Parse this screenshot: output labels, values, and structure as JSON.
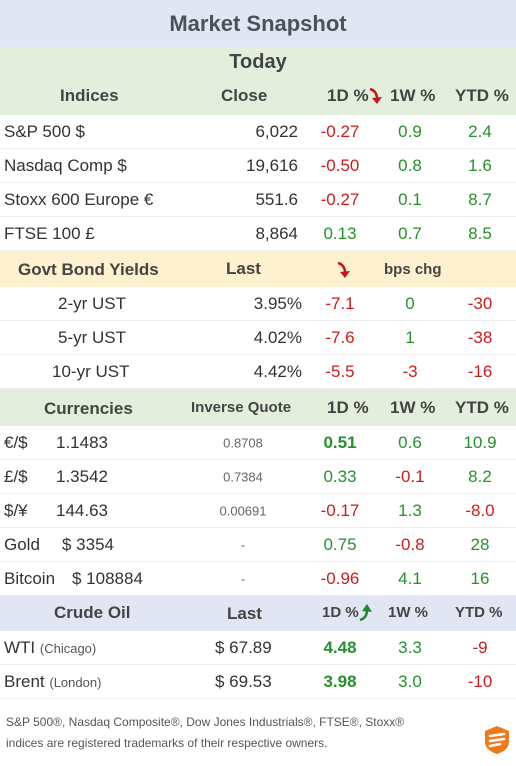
{
  "title": "Market Snapshot",
  "today_label": "Today",
  "indices": {
    "headers": [
      "Indices",
      "Close",
      "1D %",
      "1W %",
      "YTD %"
    ],
    "rows": [
      {
        "name": "S&P 500  $",
        "close": "6,022",
        "d1": "-0.27",
        "w1": "0.9",
        "ytd": "2.4"
      },
      {
        "name": "Nasdaq Comp  $",
        "close": "19,616",
        "d1": "-0.50",
        "w1": "0.8",
        "ytd": "1.6"
      },
      {
        "name": "Stoxx 600 Europe  €",
        "close": "551.6",
        "d1": "-0.27",
        "w1": "0.1",
        "ytd": "8.7"
      },
      {
        "name": "FTSE 100  £",
        "close": "8,864",
        "d1": "0.13",
        "w1": "0.7",
        "ytd": "8.5"
      }
    ]
  },
  "bonds": {
    "headers": [
      "Govt Bond Yields",
      "Last",
      "bps chg"
    ],
    "rows": [
      {
        "name": "2-yr UST",
        "last": "3.95%",
        "d1": "-7.1",
        "w1": "0",
        "ytd": "-30"
      },
      {
        "name": "5-yr UST",
        "last": "4.02%",
        "d1": "-7.6",
        "w1": "1",
        "ytd": "-38"
      },
      {
        "name": "10-yr UST",
        "last": "4.42%",
        "d1": "-5.5",
        "w1": "-3",
        "ytd": "-16"
      }
    ]
  },
  "currencies": {
    "headers": [
      "Currencies",
      "Inverse Quote",
      "1D %",
      "1W %",
      "YTD %"
    ],
    "rows": [
      {
        "name": "€/$",
        "value": "1.1483",
        "inverse": "0.8708",
        "d1": "0.51",
        "w1": "0.6",
        "ytd": "10.9"
      },
      {
        "name": "£/$",
        "value": "1.3542",
        "inverse": "0.7384",
        "d1": "0.33",
        "w1": "-0.1",
        "ytd": "8.2"
      },
      {
        "name": "$/¥",
        "value": "144.63",
        "inverse": "0.00691",
        "d1": "-0.17",
        "w1": "1.3",
        "ytd": "-8.0"
      },
      {
        "name": "Gold",
        "value": "$ 3354",
        "inverse": "-",
        "d1": "0.75",
        "w1": "-0.8",
        "ytd": "28"
      },
      {
        "name": "Bitcoin",
        "value": "$ 108884",
        "inverse": "-",
        "d1": "-0.96",
        "w1": "4.1",
        "ytd": "16"
      }
    ]
  },
  "oil": {
    "headers": [
      "Crude Oil",
      "Last",
      "1D %",
      "1W %",
      "YTD %"
    ],
    "rows": [
      {
        "name": "WTI",
        "location": "(Chicago)",
        "last": "$ 67.89",
        "d1": "4.48",
        "w1": "3.3",
        "ytd": "-9"
      },
      {
        "name": "Brent",
        "location": "(London)",
        "last": "$ 69.53",
        "d1": "3.98",
        "w1": "3.0",
        "ytd": "-10"
      }
    ]
  },
  "footer": {
    "line1": "S&P 500®, Nasdaq Composite®, Dow Jones Industrials®, FTSE®, Stoxx®",
    "line2": "indices are registered trademarks of their respective owners."
  },
  "colors": {
    "positive": "#23922a",
    "negative": "#cc1d1d",
    "green_band": "#e3efdc",
    "yellow_band": "#fdf1cf",
    "blue_band": "#e2e6f4"
  },
  "icons": {
    "trend_down": "red-down-arrow-icon",
    "trend_up": "green-up-arrow-icon",
    "brand": "orange-logo-icon"
  }
}
